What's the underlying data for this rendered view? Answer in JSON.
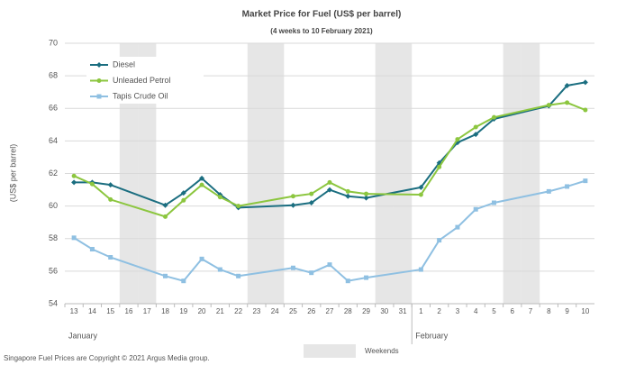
{
  "chart_data": {
    "type": "line",
    "title": "Market Price for Fuel  (US$  per barrel)",
    "subtitle": "(4 weeks to 10 February 2021)",
    "y_label": "(US$ per barrel)",
    "categories": [
      "13",
      "14",
      "15",
      "16",
      "17",
      "18",
      "19",
      "20",
      "21",
      "22",
      "23",
      "24",
      "25",
      "26",
      "27",
      "28",
      "29",
      "30",
      "31",
      "1",
      "2",
      "3",
      "4",
      "5",
      "6",
      "7",
      "8",
      "9",
      "10"
    ],
    "month_labels": [
      "January",
      "February"
    ],
    "shading_label": "Weekends",
    "shading_color": "#e6e6e6",
    "series": [
      {
        "name": "Diesel",
        "color": "#1b6e80",
        "marker": "diamond",
        "values": [
          61.45,
          61.45,
          61.3,
          null,
          null,
          60.05,
          60.8,
          61.7,
          60.7,
          59.9,
          null,
          null,
          60.05,
          60.2,
          61.0,
          60.6,
          60.5,
          null,
          null,
          61.15,
          62.65,
          63.9,
          64.4,
          65.35,
          null,
          null,
          66.15,
          67.4,
          67.6
        ]
      },
      {
        "name": "Unleaded Petrol",
        "color": "#8cc63f",
        "marker": "circle",
        "values": [
          61.85,
          61.35,
          60.4,
          null,
          null,
          59.35,
          60.35,
          61.3,
          60.55,
          60.0,
          null,
          null,
          60.6,
          60.75,
          61.45,
          60.9,
          60.75,
          null,
          null,
          60.7,
          62.4,
          64.1,
          64.85,
          65.45,
          null,
          null,
          66.2,
          66.35,
          65.9
        ]
      },
      {
        "name": "Tapis Crude Oil",
        "color": "#8fc0e2",
        "marker": "square",
        "values": [
          58.05,
          57.35,
          56.85,
          null,
          null,
          55.7,
          55.4,
          56.75,
          56.1,
          55.7,
          null,
          null,
          56.2,
          55.9,
          56.4,
          55.4,
          55.6,
          null,
          null,
          56.1,
          57.9,
          58.7,
          59.8,
          60.2,
          null,
          null,
          60.9,
          61.2,
          61.55
        ]
      }
    ],
    "ylim": [
      54,
      70
    ],
    "yticks": [
      54,
      56,
      58,
      60,
      62,
      64,
      66,
      68,
      70
    ],
    "grid": true,
    "source": "Singapore  Fuel Prices are Copyright © 2021 Argus Media group."
  }
}
